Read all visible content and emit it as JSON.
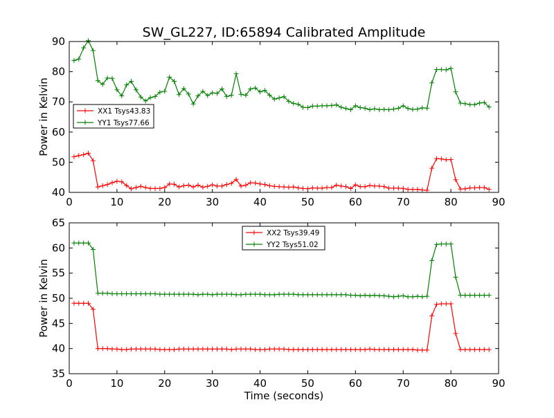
{
  "chart_data": [
    {
      "type": "line",
      "title": "SW_GL227, ID:65894 Calibrated Amplitude",
      "xlabel": "",
      "ylabel": "Power in Kelvin",
      "xlim": [
        0,
        90
      ],
      "ylim": [
        40,
        90
      ],
      "xticks": [
        0,
        10,
        20,
        30,
        40,
        50,
        60,
        70,
        80,
        90
      ],
      "yticks": [
        40,
        50,
        60,
        70,
        80,
        90
      ],
      "legend_position": "center-left",
      "x": [
        1,
        2,
        3,
        4,
        5,
        6,
        7,
        8,
        9,
        10,
        11,
        12,
        13,
        14,
        15,
        16,
        17,
        18,
        19,
        20,
        21,
        22,
        23,
        24,
        25,
        26,
        27,
        28,
        29,
        30,
        31,
        32,
        33,
        34,
        35,
        36,
        37,
        38,
        39,
        40,
        41,
        42,
        43,
        44,
        45,
        46,
        47,
        48,
        49,
        50,
        51,
        52,
        53,
        54,
        55,
        56,
        57,
        58,
        59,
        60,
        61,
        62,
        63,
        64,
        65,
        66,
        67,
        68,
        69,
        70,
        71,
        72,
        73,
        74,
        75,
        76,
        77,
        78,
        79,
        80,
        81,
        82,
        83,
        84,
        85,
        86,
        87,
        88
      ],
      "series": [
        {
          "name": "XX1 Tsys43.83",
          "color": "#ff0000",
          "values": [
            51.8,
            52.2,
            52.5,
            53.0,
            50.5,
            41.8,
            42.2,
            42.6,
            43.2,
            43.7,
            43.5,
            42.3,
            41.2,
            41.6,
            42.0,
            41.6,
            41.3,
            41.3,
            41.3,
            41.6,
            42.8,
            42.7,
            41.8,
            42.2,
            42.4,
            41.8,
            42.4,
            41.7,
            42.0,
            42.5,
            42.1,
            42.1,
            42.6,
            43.0,
            44.3,
            42.1,
            42.4,
            43.2,
            43.1,
            42.8,
            42.6,
            42.2,
            42.0,
            41.9,
            41.8,
            41.7,
            41.8,
            41.5,
            41.3,
            41.2,
            41.5,
            41.4,
            41.4,
            41.6,
            41.6,
            42.4,
            42.1,
            41.9,
            41.3,
            42.5,
            41.9,
            41.9,
            42.3,
            42.1,
            42.1,
            41.9,
            41.4,
            41.4,
            41.4,
            41.3,
            41.0,
            41.0,
            41.0,
            40.8,
            40.7,
            48.0,
            51.2,
            51.1,
            50.8,
            50.9,
            44.2,
            41.1,
            41.2,
            41.5,
            41.5,
            41.6,
            41.6,
            41.0
          ]
        },
        {
          "name": "YY1 Tsys77.66",
          "color": "#008000",
          "values": [
            83.7,
            84.2,
            87.9,
            90.3,
            87.0,
            77.0,
            75.8,
            77.9,
            77.8,
            74.0,
            72.0,
            75.6,
            76.8,
            74.0,
            71.6,
            70.3,
            71.4,
            71.8,
            73.2,
            73.5,
            78.2,
            76.8,
            72.4,
            74.4,
            72.6,
            69.3,
            72.0,
            73.5,
            72.1,
            73.0,
            72.8,
            74.3,
            71.8,
            72.2,
            79.3,
            72.5,
            72.2,
            74.3,
            74.6,
            73.3,
            73.8,
            72.2,
            70.9,
            71.3,
            71.7,
            70.2,
            69.5,
            69.2,
            68.2,
            68.1,
            68.6,
            68.6,
            68.7,
            68.7,
            68.8,
            69.0,
            68.2,
            67.8,
            67.4,
            68.7,
            68.1,
            67.9,
            67.4,
            67.7,
            67.4,
            67.5,
            67.4,
            67.6,
            67.9,
            68.7,
            67.8,
            67.5,
            67.6,
            68.0,
            67.9,
            76.3,
            80.7,
            80.7,
            80.6,
            81.1,
            73.3,
            69.6,
            69.4,
            69.1,
            69.1,
            69.6,
            69.8,
            68.3
          ]
        }
      ]
    },
    {
      "type": "line",
      "title": "",
      "xlabel": "Time (seconds)",
      "ylabel": "Power in Kelvin",
      "xlim": [
        0,
        90
      ],
      "ylim": [
        35,
        65
      ],
      "xticks": [
        0,
        10,
        20,
        30,
        40,
        50,
        60,
        70,
        80,
        90
      ],
      "yticks": [
        35,
        40,
        45,
        50,
        55,
        60,
        65
      ],
      "legend_position": "upper-center",
      "x": [
        1,
        2,
        3,
        4,
        5,
        6,
        7,
        8,
        9,
        10,
        11,
        12,
        13,
        14,
        15,
        16,
        17,
        18,
        19,
        20,
        21,
        22,
        23,
        24,
        25,
        26,
        27,
        28,
        29,
        30,
        31,
        32,
        33,
        34,
        35,
        36,
        37,
        38,
        39,
        40,
        41,
        42,
        43,
        44,
        45,
        46,
        47,
        48,
        49,
        50,
        51,
        52,
        53,
        54,
        55,
        56,
        57,
        58,
        59,
        60,
        61,
        62,
        63,
        64,
        65,
        66,
        67,
        68,
        69,
        70,
        71,
        72,
        73,
        74,
        75,
        76,
        77,
        78,
        79,
        80,
        81,
        82,
        83,
        84,
        85,
        86,
        87,
        88
      ],
      "series": [
        {
          "name": "XX2 Tsys39.49",
          "color": "#ff0000",
          "values": [
            49.0,
            49.0,
            49.0,
            49.0,
            47.8,
            40.0,
            40.0,
            40.0,
            39.9,
            39.9,
            39.8,
            39.8,
            39.9,
            39.9,
            39.9,
            39.9,
            39.9,
            39.9,
            39.8,
            39.8,
            39.8,
            39.8,
            39.9,
            39.9,
            39.9,
            39.9,
            39.9,
            39.9,
            39.9,
            39.9,
            39.9,
            39.9,
            39.9,
            39.8,
            39.9,
            39.9,
            39.9,
            39.9,
            39.8,
            39.8,
            39.8,
            39.9,
            39.9,
            39.9,
            39.9,
            39.8,
            39.8,
            39.8,
            39.8,
            39.8,
            39.8,
            39.8,
            39.8,
            39.8,
            39.8,
            39.8,
            39.8,
            39.8,
            39.8,
            39.8,
            39.8,
            39.8,
            39.9,
            39.8,
            39.8,
            39.8,
            39.8,
            39.8,
            39.8,
            39.8,
            39.8,
            39.8,
            39.7,
            39.7,
            39.7,
            46.5,
            48.8,
            48.9,
            48.9,
            48.9,
            43.0,
            39.8,
            39.8,
            39.8,
            39.8,
            39.8,
            39.8,
            39.8
          ]
        },
        {
          "name": "YY2 Tsys51.02",
          "color": "#008000",
          "values": [
            61.0,
            61.0,
            61.0,
            61.0,
            59.7,
            51.0,
            51.0,
            51.0,
            50.9,
            50.9,
            50.9,
            50.9,
            50.9,
            50.9,
            50.9,
            50.9,
            50.9,
            50.9,
            50.8,
            50.8,
            50.8,
            50.8,
            50.8,
            50.8,
            50.8,
            50.8,
            50.7,
            50.8,
            50.8,
            50.7,
            50.8,
            50.8,
            50.8,
            50.8,
            50.7,
            50.7,
            50.8,
            50.8,
            50.8,
            50.8,
            50.7,
            50.7,
            50.7,
            50.8,
            50.8,
            50.8,
            50.8,
            50.7,
            50.7,
            50.7,
            50.7,
            50.7,
            50.7,
            50.7,
            50.7,
            50.7,
            50.7,
            50.7,
            50.6,
            50.6,
            50.5,
            50.6,
            50.5,
            50.6,
            50.5,
            50.5,
            50.4,
            50.3,
            50.4,
            50.5,
            50.3,
            50.3,
            50.4,
            50.3,
            50.4,
            57.5,
            60.7,
            60.8,
            60.8,
            60.8,
            54.2,
            50.6,
            50.6,
            50.6,
            50.6,
            50.6,
            50.6,
            50.6
          ]
        }
      ]
    }
  ]
}
